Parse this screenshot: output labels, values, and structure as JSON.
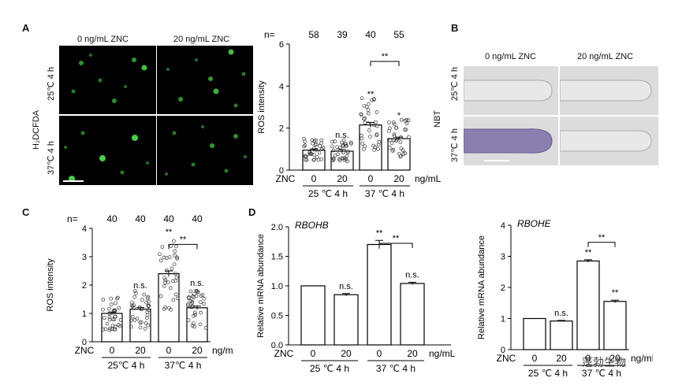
{
  "panels": {
    "a": "A",
    "b": "B",
    "c": "C",
    "d": "D"
  },
  "panelA": {
    "col_labels": [
      "0 ng/mL ZNC",
      "20 ng/mL ZNC"
    ],
    "row_labels": [
      "25℃ 4 h",
      "37℃ 4 h"
    ],
    "stain_label": "H₂DCFDA"
  },
  "panelB": {
    "col_labels": [
      "0 ng/mL ZNC",
      "20 ng/mL ZNC"
    ],
    "row_labels": [
      "25℃ 4 h",
      "37℃ 4 h"
    ],
    "stain_label": "NBT"
  },
  "chart_data": [
    {
      "type": "bar",
      "panel": "A",
      "ylabel": "ROS intensity",
      "ylim": [
        0,
        6
      ],
      "yticks": [
        "0",
        "2",
        "4",
        "6"
      ],
      "n_prefix": "n=",
      "n_values": [
        "58",
        "39",
        "40",
        "55"
      ],
      "categories": [
        "0",
        "20",
        "0",
        "20"
      ],
      "values": [
        0.95,
        0.9,
        2.15,
        1.5
      ],
      "errors": [
        0.06,
        0.08,
        0.12,
        0.07
      ],
      "annotations": [
        "",
        "n.s.",
        "**",
        "*"
      ],
      "bracket": {
        "from": 2,
        "to": 3,
        "label": "**"
      },
      "x_prefix": "ZNC",
      "x_unit": "ng/mL",
      "groups": [
        "25 ℃  4 h",
        "37 ℃  4 h"
      ]
    },
    {
      "type": "bar",
      "panel": "C",
      "ylabel": "ROS intensity",
      "ylim": [
        0,
        4
      ],
      "yticks": [
        "0",
        "1",
        "2",
        "3",
        "4"
      ],
      "n_prefix": "n=",
      "n_values": [
        "40",
        "40",
        "40",
        "40"
      ],
      "categories": [
        "0",
        "20",
        "0",
        "20"
      ],
      "values": [
        1.0,
        1.15,
        2.4,
        1.2
      ],
      "errors": [
        0.05,
        0.06,
        0.1,
        0.06
      ],
      "annotations": [
        "",
        "n.s.",
        "**",
        "n.s."
      ],
      "bracket": {
        "from": 2,
        "to": 3,
        "label": "**"
      },
      "x_prefix": "ZNC",
      "x_unit": "ng/mL",
      "groups": [
        "25℃  4 h",
        "37℃  4 h"
      ]
    },
    {
      "type": "bar",
      "panel": "D",
      "title": "RBOHB",
      "ylabel": "Relative mRNA abundance",
      "ylim": [
        0,
        2.0
      ],
      "yticks": [
        "0.0",
        "0.5",
        "1.0",
        "1.5",
        "2.0"
      ],
      "categories": [
        "0",
        "20",
        "0",
        "20"
      ],
      "values": [
        1.0,
        0.85,
        1.7,
        1.04
      ],
      "errors": [
        0,
        0.02,
        0.07,
        0.02
      ],
      "annotations": [
        "",
        "n.s.",
        "**",
        "n.s."
      ],
      "bracket": {
        "from": 2,
        "to": 3,
        "label": "**"
      },
      "x_prefix": "ZNC",
      "x_unit": "ng/mL",
      "groups": [
        "25 ℃  4 h",
        "37 ℃  4 h"
      ]
    },
    {
      "type": "bar",
      "panel": "D",
      "title": "RBOHE",
      "ylabel": "Relative mRNA abundance",
      "ylim": [
        0,
        4
      ],
      "yticks": [
        "0",
        "1",
        "2",
        "3",
        "4"
      ],
      "categories": [
        "0",
        "20",
        "0",
        "20"
      ],
      "values": [
        1.0,
        0.92,
        2.85,
        1.55
      ],
      "errors": [
        0,
        0.02,
        0.04,
        0.04
      ],
      "annotations": [
        "",
        "n.s.",
        "**",
        "**"
      ],
      "bracket": {
        "from": 2,
        "to": 3,
        "label": "**"
      },
      "x_prefix": "ZNC",
      "x_unit": "ng/mL",
      "groups": [
        "25 ℃  4 h",
        "37 ℃  4 h"
      ]
    }
  ],
  "watermark": "蓬勃生物"
}
